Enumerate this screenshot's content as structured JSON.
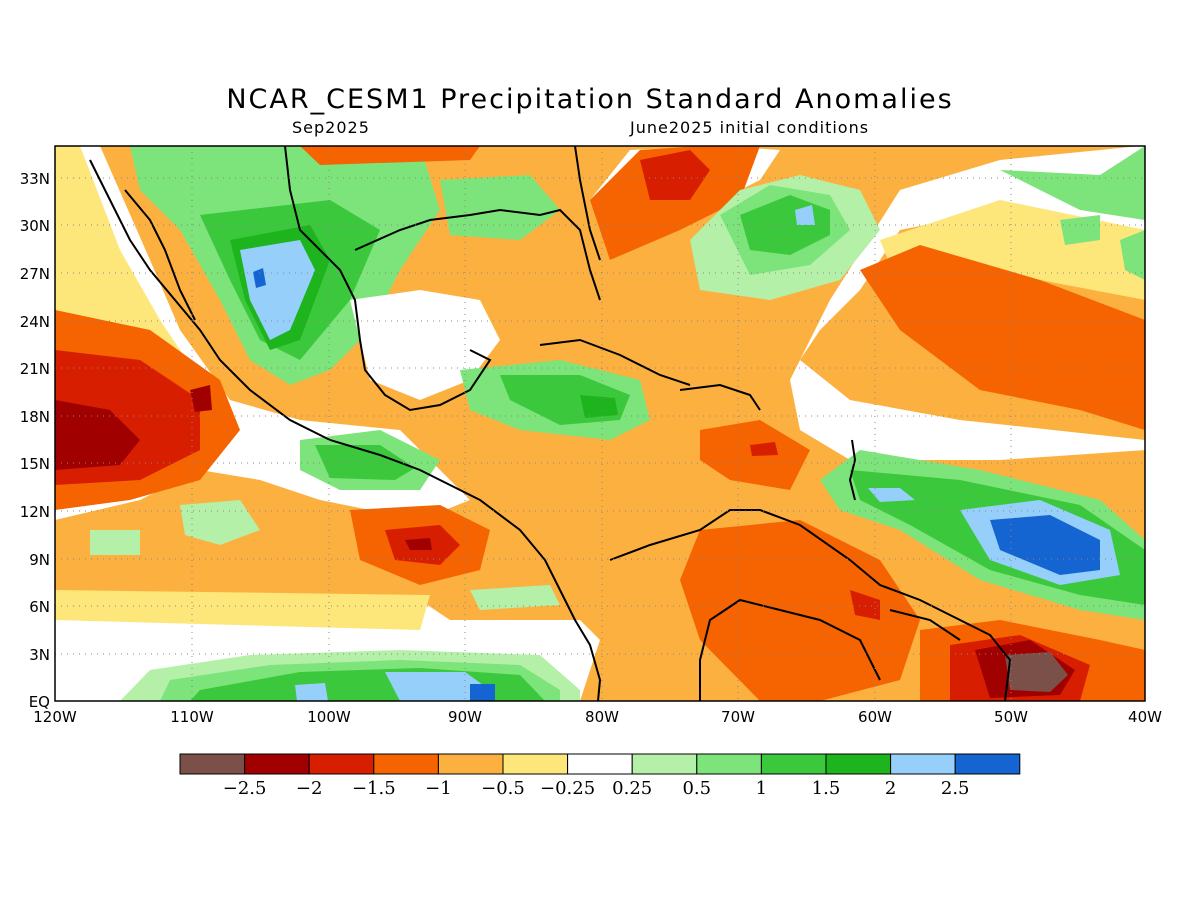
{
  "title": "NCAR_CESM1 Precipitation Standard Anomalies",
  "subtitle_left": "Sep2025",
  "subtitle_right": "June2025 initial conditions",
  "map": {
    "lon_range": [
      -120,
      -40
    ],
    "lat_range": [
      0,
      35
    ],
    "lon_ticks": [
      "120W",
      "110W",
      "100W",
      "90W",
      "80W",
      "70W",
      "60W",
      "50W",
      "40W"
    ],
    "lat_ticks": [
      "EQ",
      "3N",
      "6N",
      "9N",
      "12N",
      "15N",
      "18N",
      "21N",
      "24N",
      "27N",
      "30N",
      "33N"
    ],
    "grid": "dotted"
  },
  "colorbar": {
    "colors": [
      "#7a5048",
      "#a00000",
      "#d81e00",
      "#f56400",
      "#fcb040",
      "#fde67a",
      "#ffffff",
      "#b4f0a8",
      "#7ce47a",
      "#3cc83c",
      "#1eb41e",
      "#96d0fa",
      "#1464d2"
    ],
    "labels": [
      "−2.5",
      "−2",
      "−1.5",
      "−1",
      "−0.5",
      "−0.25",
      "0.25",
      "0.5",
      "1",
      "1.5",
      "2",
      "2.5"
    ]
  }
}
